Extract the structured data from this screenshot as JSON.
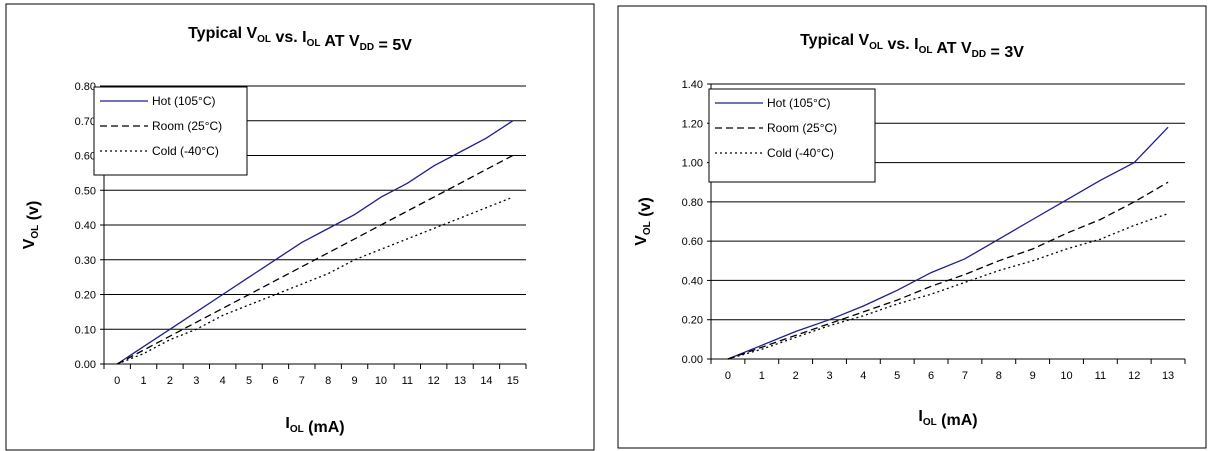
{
  "chart_data": [
    {
      "type": "line",
      "title": {
        "main": "Typical V",
        "main_sub": "OL",
        "mid": " vs. I",
        "mid_sub": "OL",
        "tail": " AT V",
        "tail_sub": "DD",
        "end": " = 5V"
      },
      "xlabel": {
        "main": "I",
        "sub": "OL",
        "rest": " (mA)"
      },
      "ylabel": {
        "main": "V",
        "sub": "OL",
        "rest": " (v)"
      },
      "x": [
        0,
        1,
        2,
        3,
        4,
        5,
        6,
        7,
        8,
        9,
        10,
        11,
        12,
        13,
        14,
        15
      ],
      "x_tick_labels": [
        "0",
        "1",
        "2",
        "3",
        "4",
        "5",
        "6",
        "7",
        "8",
        "9",
        "10",
        "11",
        "12",
        "13",
        "14",
        "15"
      ],
      "ylim": [
        0,
        0.8
      ],
      "y_tick_labels": [
        "0.00",
        "0.10",
        "0.20",
        "0.30",
        "0.40",
        "0.50",
        "0.60",
        "0.70",
        "0.80"
      ],
      "grid": "horizontal",
      "legend_position": "top-left",
      "series": [
        {
          "name": "Hot (105°C)",
          "color": "#1f1f8f",
          "dash": "solid",
          "values": [
            0.0,
            0.05,
            0.1,
            0.15,
            0.2,
            0.25,
            0.3,
            0.35,
            0.39,
            0.43,
            0.48,
            0.52,
            0.57,
            0.61,
            0.65,
            0.7
          ]
        },
        {
          "name": "Room (25°C)",
          "color": "#000000",
          "dash": "dashed",
          "values": [
            0.0,
            0.04,
            0.08,
            0.12,
            0.16,
            0.2,
            0.24,
            0.28,
            0.32,
            0.36,
            0.4,
            0.44,
            0.48,
            0.52,
            0.56,
            0.6
          ]
        },
        {
          "name": "Cold (-40°C)",
          "color": "#000000",
          "dash": "dotted",
          "values": [
            0.0,
            0.03,
            0.07,
            0.1,
            0.14,
            0.17,
            0.2,
            0.23,
            0.26,
            0.3,
            0.33,
            0.36,
            0.39,
            0.42,
            0.45,
            0.48
          ]
        }
      ]
    },
    {
      "type": "line",
      "title": {
        "main": "Typical V",
        "main_sub": "OL",
        "mid": " vs. I",
        "mid_sub": "OL",
        "tail": " AT V",
        "tail_sub": "DD",
        "end": " = 3V"
      },
      "xlabel": {
        "main": "I",
        "sub": "OL",
        "rest": " (mA)"
      },
      "ylabel": {
        "main": "V",
        "sub": "OL",
        "rest": " (v)"
      },
      "x": [
        0,
        1,
        2,
        3,
        4,
        5,
        6,
        7,
        8,
        9,
        10,
        11,
        12,
        13
      ],
      "x_tick_labels": [
        "0",
        "1",
        "2",
        "3",
        "4",
        "5",
        "6",
        "7",
        "8",
        "9",
        "10",
        "11",
        "12",
        "13"
      ],
      "ylim": [
        0,
        1.4
      ],
      "y_tick_labels": [
        "0.00",
        "0.20",
        "0.40",
        "0.60",
        "0.80",
        "1.00",
        "1.20",
        "1.40"
      ],
      "grid": "horizontal",
      "legend_position": "top-left",
      "series": [
        {
          "name": "Hot (105°C)",
          "color": "#1f1f8f",
          "dash": "solid",
          "values": [
            0.0,
            0.07,
            0.14,
            0.2,
            0.27,
            0.35,
            0.44,
            0.51,
            0.61,
            0.71,
            0.81,
            0.91,
            1.0,
            1.18
          ]
        },
        {
          "name": "Room (25°C)",
          "color": "#000000",
          "dash": "dashed",
          "values": [
            0.0,
            0.06,
            0.12,
            0.18,
            0.24,
            0.3,
            0.37,
            0.43,
            0.5,
            0.56,
            0.64,
            0.71,
            0.8,
            0.9
          ]
        },
        {
          "name": "Cold (-40°C)",
          "color": "#000000",
          "dash": "dotted",
          "values": [
            0.0,
            0.05,
            0.11,
            0.17,
            0.22,
            0.28,
            0.33,
            0.39,
            0.45,
            0.5,
            0.56,
            0.61,
            0.68,
            0.74
          ]
        }
      ]
    }
  ]
}
